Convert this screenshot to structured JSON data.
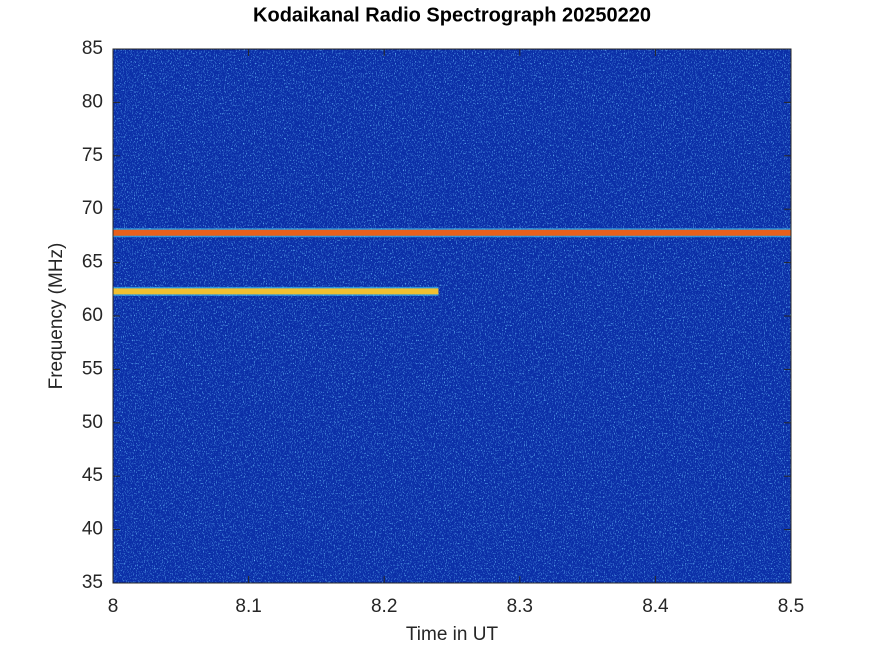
{
  "chart_data": {
    "type": "spectrogram",
    "title": "Kodaikanal Radio Spectrograph  20250220",
    "x_label": "Time in UT",
    "y_label": "Frequency (MHz)",
    "x": [
      8,
      8.24,
      8.5
    ],
    "series": [
      {
        "color": "#e8601c",
        "values": [
          67.8,
          67.8,
          67.8
        ]
      },
      {
        "color": "#f0c030",
        "values": [
          62.3,
          62.3,
          null
        ]
      }
    ],
    "xlim": [
      8,
      8.5
    ],
    "xticks": [
      8,
      8.1,
      8.2,
      8.3,
      8.4,
      8.5
    ],
    "ylim": [
      35,
      85
    ],
    "yticks": [
      35,
      40,
      45,
      50,
      55,
      60,
      65,
      70,
      75,
      80,
      85
    ]
  }
}
